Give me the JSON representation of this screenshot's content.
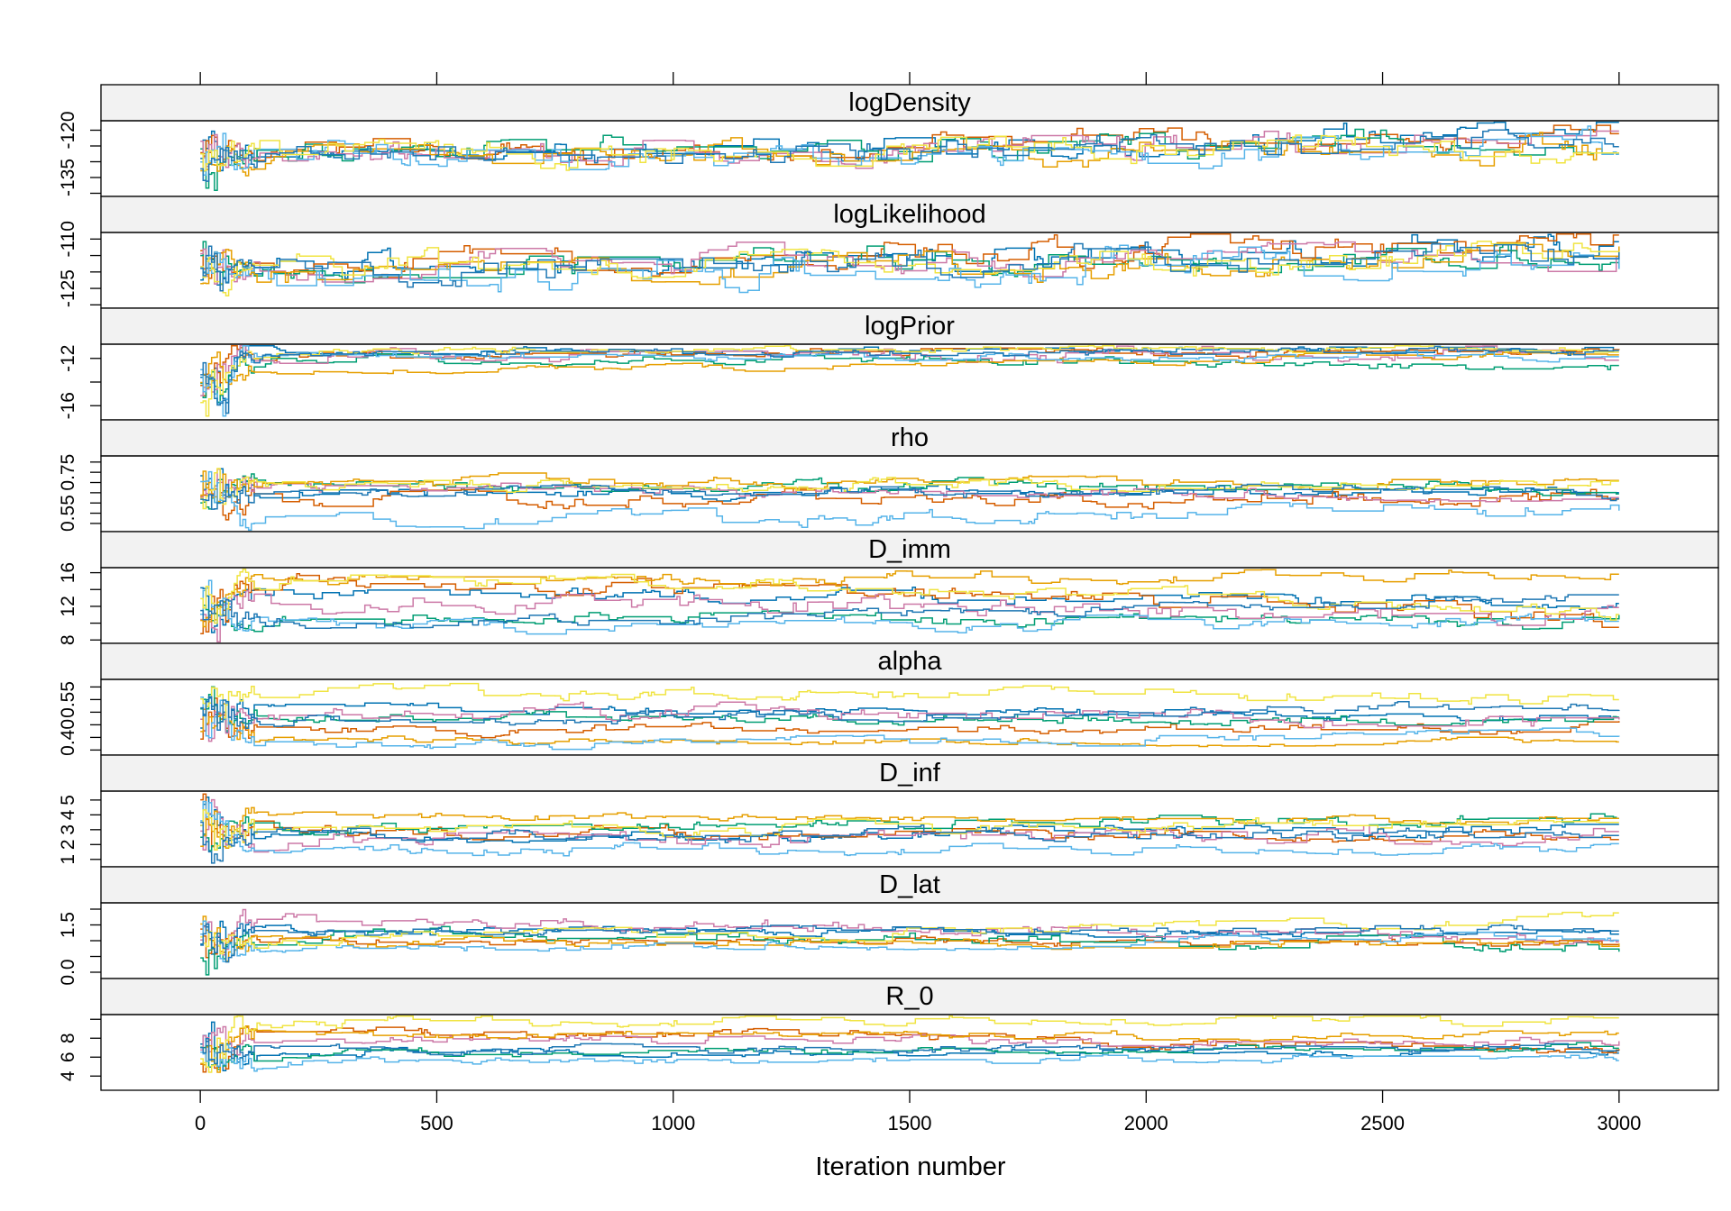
{
  "chart_data": {
    "type": "line",
    "layout": "trellis",
    "xlabel": "Iteration number",
    "xlim": [
      -210,
      3210
    ],
    "x_ticks": [
      0,
      500,
      1000,
      1500,
      2000,
      2500,
      3000
    ],
    "iterations": 3000,
    "n_chains": 8,
    "series_colors": [
      "#0072B2",
      "#D55E00",
      "#009E73",
      "#CC79A7",
      "#E69F00",
      "#56B4E9",
      "#F0E442",
      "#1F78B4"
    ],
    "panels": [
      {
        "name": "logDensity",
        "ylim": [
          -141,
          -117
        ],
        "y_ticks": [
          -120,
          -125,
          -130,
          -135,
          -140
        ],
        "y_tick_labels": [
          "-120",
          "",
          "",
          "-135",
          ""
        ],
        "chain_final": [
          -120,
          -121,
          -123,
          -124,
          -125,
          -126,
          -126,
          -124
        ],
        "chain_typical": [
          -128,
          -127,
          -127,
          -128,
          -130,
          -129,
          -127,
          -128
        ],
        "chain_spread": [
          3,
          3,
          3,
          3,
          3,
          3.5,
          3,
          3
        ]
      },
      {
        "name": "logLikelihood",
        "ylim": [
          -131,
          -108
        ],
        "y_ticks": [
          -110,
          -115,
          -120,
          -125,
          -130
        ],
        "y_tick_labels": [
          "-110",
          "",
          "",
          "-125",
          ""
        ],
        "chain_final": [
          -111,
          -111,
          -114,
          -114,
          -115,
          -115,
          -116,
          -114
        ],
        "chain_typical": [
          -119,
          -118,
          -118,
          -119,
          -121,
          -121,
          -118,
          -119
        ],
        "chain_spread": [
          3,
          3,
          3,
          3,
          3,
          3.5,
          3,
          3
        ]
      },
      {
        "name": "logPrior",
        "ylim": [
          -17.2,
          -10.8
        ],
        "y_ticks": [
          -12,
          -14,
          -16
        ],
        "y_tick_labels": [
          "-12",
          "",
          "-16"
        ],
        "chain_final": [
          -11.3,
          -11.5,
          -12.8,
          -11.6,
          -11.5,
          -11.9,
          -11.2,
          -11.4
        ],
        "chain_typical": [
          -11.4,
          -11.6,
          -11.8,
          -11.7,
          -13.1,
          -11.9,
          -11.3,
          -11.5
        ],
        "chain_spread": [
          0.25,
          0.3,
          0.3,
          0.4,
          0.2,
          0.25,
          0.2,
          0.25
        ]
      },
      {
        "name": "rho",
        "ylim": [
          0.46,
          0.83
        ],
        "y_ticks": [
          0.5,
          0.55,
          0.6,
          0.65,
          0.7,
          0.75,
          0.8
        ],
        "y_tick_labels": [
          "",
          "0.55",
          "",
          "",
          "",
          "0.75",
          ""
        ],
        "chain_final": [
          0.66,
          0.63,
          0.67,
          0.64,
          0.7,
          0.58,
          0.69,
          0.65
        ],
        "chain_typical": [
          0.65,
          0.61,
          0.68,
          0.67,
          0.7,
          0.51,
          0.69,
          0.66
        ],
        "chain_spread": [
          0.02,
          0.03,
          0.02,
          0.02,
          0.02,
          0.03,
          0.02,
          0.02
        ]
      },
      {
        "name": "D_imm",
        "ylim": [
          7.6,
          16.6
        ],
        "y_ticks": [
          8,
          10,
          12,
          14,
          16
        ],
        "y_tick_labels": [
          "8",
          "",
          "12",
          "",
          "16"
        ],
        "chain_final": [
          12.4,
          10.3,
          10.2,
          10.6,
          15.8,
          10.2,
          11.2,
          13.5
        ],
        "chain_typical": [
          13.5,
          15.0,
          10.5,
          12.8,
          15.1,
          9.5,
          15.5,
          9.8
        ],
        "chain_spread": [
          0.6,
          0.8,
          0.6,
          0.9,
          0.5,
          0.5,
          0.6,
          0.5
        ]
      },
      {
        "name": "alpha",
        "ylim": [
          0.33,
          0.63
        ],
        "y_ticks": [
          0.35,
          0.4,
          0.45,
          0.5,
          0.55,
          0.6
        ],
        "y_tick_labels": [
          "",
          "0.40",
          "",
          "",
          "0.55",
          ""
        ],
        "chain_final": [
          0.47,
          0.44,
          0.46,
          0.46,
          0.38,
          0.42,
          0.56,
          0.53
        ],
        "chain_typical": [
          0.52,
          0.43,
          0.48,
          0.5,
          0.39,
          0.37,
          0.58,
          0.47
        ],
        "chain_spread": [
          0.015,
          0.015,
          0.015,
          0.02,
          0.01,
          0.015,
          0.02,
          0.015
        ]
      },
      {
        "name": "D_inf",
        "ylim": [
          0.5,
          5.6
        ],
        "y_ticks": [
          1,
          2,
          3,
          4,
          5
        ],
        "y_tick_labels": [
          "1",
          "2",
          "3",
          "4",
          "5"
        ],
        "chain_final": [
          3.2,
          2.5,
          3.9,
          3.0,
          3.6,
          1.6,
          3.4,
          2.8
        ],
        "chain_typical": [
          2.4,
          2.8,
          3.0,
          2.2,
          3.9,
          1.7,
          2.9,
          2.6
        ],
        "chain_spread": [
          0.3,
          0.3,
          0.3,
          0.4,
          0.2,
          0.25,
          0.3,
          0.3
        ]
      },
      {
        "name": "D_lat",
        "ylim": [
          -0.2,
          2.2
        ],
        "y_ticks": [
          0.0,
          0.5,
          1.0,
          1.5,
          2.0
        ],
        "y_tick_labels": [
          "0.0",
          "",
          "",
          "1.5",
          ""
        ],
        "chain_final": [
          1.2,
          0.9,
          0.8,
          1.0,
          0.9,
          1.1,
          1.7,
          1.4
        ],
        "chain_typical": [
          1.3,
          1.0,
          1.2,
          1.6,
          0.9,
          0.8,
          1.1,
          1.3
        ],
        "chain_spread": [
          0.1,
          0.1,
          0.15,
          0.15,
          0.1,
          0.1,
          0.15,
          0.1
        ]
      },
      {
        "name": "R_0",
        "ylim": [
          2.5,
          10.5
        ],
        "y_ticks": [
          4,
          6,
          8,
          10
        ],
        "y_tick_labels": [
          "4",
          "6",
          "8",
          ""
        ],
        "chain_final": [
          6.5,
          6.5,
          7.2,
          7.5,
          8.5,
          6.0,
          10.0,
          7.0
        ],
        "chain_typical": [
          6.5,
          8.8,
          6.4,
          7.8,
          8.3,
          5.6,
          9.8,
          6.7
        ],
        "chain_spread": [
          0.3,
          0.4,
          0.3,
          0.4,
          0.3,
          0.3,
          0.4,
          0.3
        ]
      }
    ]
  }
}
